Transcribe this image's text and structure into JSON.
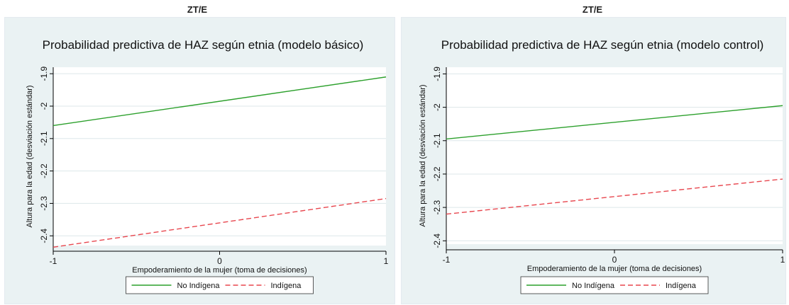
{
  "header_left": "ZT/E",
  "header_right": "ZT/E",
  "colors": {
    "no_indigena": "#2ca02c",
    "indigena": "#e8474f",
    "plot_bg": "#ffffff",
    "outer_bg": "#eaf2f3",
    "grid": "#dde7ea",
    "axis": "#000000"
  },
  "chart_data": [
    {
      "type": "line",
      "title": "Probabilidad predictiva de HAZ según etnia (modelo básico)",
      "xlabel": "Empoderamiento de la mujer (toma de decisiones)",
      "ylabel": "Altura para la edad (desviación estándar)",
      "xlim": [
        -1,
        1
      ],
      "ylim": [
        -2.43,
        -1.88
      ],
      "x_ticks": [
        -1,
        0,
        1
      ],
      "x_tick_labels": [
        "-1",
        "0",
        "1"
      ],
      "y_ticks": [
        -1.9,
        -2,
        -2.1,
        -2.2,
        -2.3,
        -2.4
      ],
      "y_tick_labels": [
        "-1.9",
        "-2",
        "-2.1",
        "-2.2",
        "-2.3",
        "-2.4"
      ],
      "grid": true,
      "legend_position": "bottom",
      "series": [
        {
          "name": "No Indígena",
          "x": [
            -1,
            1
          ],
          "y": [
            -2.06,
            -1.91
          ],
          "style": "solid",
          "color": "#2ca02c"
        },
        {
          "name": "Indígena",
          "x": [
            -1,
            1
          ],
          "y": [
            -2.435,
            -2.285
          ],
          "style": "dashed",
          "color": "#e8474f"
        }
      ]
    },
    {
      "type": "line",
      "title": "Probabilidad predictiva de HAZ según etnia (modelo control)",
      "xlabel": "Empoderamiento de la mujer (toma de decisiones)",
      "ylabel": "Altura para la edad (desviación estándar)",
      "xlim": [
        -1,
        1
      ],
      "ylim": [
        -2.41,
        -1.88
      ],
      "x_ticks": [
        -1,
        0,
        1
      ],
      "x_tick_labels": [
        "-1",
        "0",
        "1"
      ],
      "y_ticks": [
        -1.9,
        -2,
        -2.1,
        -2.2,
        -2.3,
        -2.4
      ],
      "y_tick_labels": [
        "-1.9",
        "-2",
        "-2.1",
        "-2.2",
        "-2.3",
        "-2.4"
      ],
      "grid": true,
      "legend_position": "bottom",
      "series": [
        {
          "name": "No Indígena",
          "x": [
            -1,
            1
          ],
          "y": [
            -2.095,
            -1.995
          ],
          "style": "solid",
          "color": "#2ca02c"
        },
        {
          "name": "Indígena",
          "x": [
            -1,
            1
          ],
          "y": [
            -2.32,
            -2.215
          ],
          "style": "dashed",
          "color": "#e8474f"
        }
      ]
    }
  ]
}
